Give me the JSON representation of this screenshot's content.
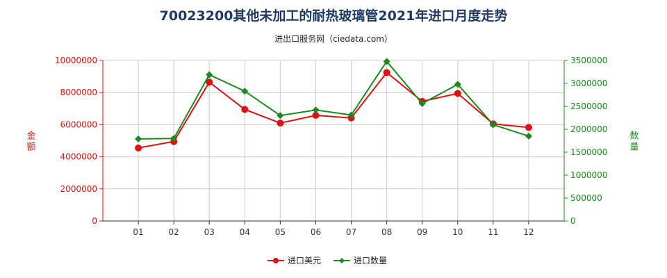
{
  "page": {
    "title": "70023200其他未加工的耐热玻璃管2021年进口月度走势",
    "subtitle": "进出口服务网（ciedata.com）"
  },
  "colors": {
    "amount_series": "#e01010",
    "quantity_series": "#1a8a1a",
    "left_axis": "#e01010",
    "right_axis": "#1a8a1a",
    "grid": "#cccccc",
    "title": "#1f3b63"
  },
  "chart_data": {
    "type": "line",
    "title": "70023200其他未加工的耐热玻璃管2021年进口月度走势",
    "subtitle": "进出口服务网（ciedata.com）",
    "categories": [
      "01",
      "02",
      "03",
      "04",
      "05",
      "06",
      "07",
      "08",
      "09",
      "10",
      "11",
      "12"
    ],
    "xlabel": "",
    "ylabel_left": "金额",
    "ylabel_right": "数量",
    "ylim_left": [
      0,
      10000000
    ],
    "ylim_right": [
      0,
      3500000
    ],
    "yticks_left": [
      "0",
      "2000000",
      "4000000",
      "6000000",
      "8000000",
      "10000000"
    ],
    "yticks_right": [
      "0",
      "500000",
      "1000000",
      "1500000",
      "2000000",
      "2500000",
      "3000000",
      "3500000"
    ],
    "grid": true,
    "legend_position": "bottom-center",
    "series": [
      {
        "name": "进口美元",
        "axis": "left",
        "color": "#e01010",
        "values": [
          4550000,
          4950000,
          8650000,
          6950000,
          6100000,
          6580000,
          6420000,
          9250000,
          7450000,
          7950000,
          6050000,
          5830000
        ]
      },
      {
        "name": "进口数量",
        "axis": "right",
        "color": "#1a8a1a",
        "values": [
          1790000,
          1800000,
          3190000,
          2830000,
          2300000,
          2420000,
          2310000,
          3480000,
          2560000,
          2980000,
          2100000,
          1850000
        ]
      }
    ]
  }
}
